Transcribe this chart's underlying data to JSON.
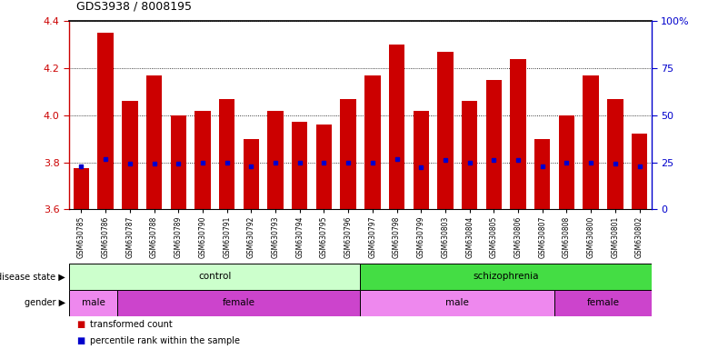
{
  "title": "GDS3938 / 8008195",
  "samples": [
    "GSM630785",
    "GSM630786",
    "GSM630787",
    "GSM630788",
    "GSM630789",
    "GSM630790",
    "GSM630791",
    "GSM630792",
    "GSM630793",
    "GSM630794",
    "GSM630795",
    "GSM630796",
    "GSM630797",
    "GSM630798",
    "GSM630799",
    "GSM630803",
    "GSM630804",
    "GSM630805",
    "GSM630806",
    "GSM630807",
    "GSM630808",
    "GSM630800",
    "GSM630801",
    "GSM630802"
  ],
  "bar_values": [
    3.775,
    4.35,
    4.06,
    4.17,
    4.0,
    4.02,
    4.07,
    3.9,
    4.02,
    3.97,
    3.96,
    4.07,
    4.17,
    4.3,
    4.02,
    4.27,
    4.06,
    4.15,
    4.24,
    3.9,
    4.0,
    4.17,
    4.07,
    3.92
  ],
  "blue_values": [
    3.782,
    3.812,
    3.795,
    3.795,
    3.795,
    3.8,
    3.8,
    3.782,
    3.8,
    3.8,
    3.8,
    3.8,
    3.8,
    3.812,
    3.778,
    3.808,
    3.8,
    3.808,
    3.808,
    3.782,
    3.8,
    3.8,
    3.795,
    3.782
  ],
  "ylim_left": [
    3.6,
    4.4
  ],
  "ylim_right": [
    0,
    100
  ],
  "yticks_left": [
    3.6,
    3.8,
    4.0,
    4.2,
    4.4
  ],
  "yticks_right": [
    0,
    25,
    50,
    75,
    100
  ],
  "ytick_right_labels": [
    "0",
    "25",
    "50",
    "75",
    "100%"
  ],
  "bar_color": "#cc0000",
  "blue_color": "#0000cc",
  "bar_bottom": 3.6,
  "disease_state_regions": [
    {
      "label": "control",
      "start": 0,
      "end": 12,
      "color": "#ccffcc"
    },
    {
      "label": "schizophrenia",
      "start": 12,
      "end": 24,
      "color": "#44dd44"
    }
  ],
  "gender_regions": [
    {
      "label": "male",
      "start": 0,
      "end": 2,
      "color": "#ee88ee"
    },
    {
      "label": "female",
      "start": 2,
      "end": 12,
      "color": "#cc44cc"
    },
    {
      "label": "male",
      "start": 12,
      "end": 20,
      "color": "#ee88ee"
    },
    {
      "label": "female",
      "start": 20,
      "end": 24,
      "color": "#cc44cc"
    }
  ]
}
